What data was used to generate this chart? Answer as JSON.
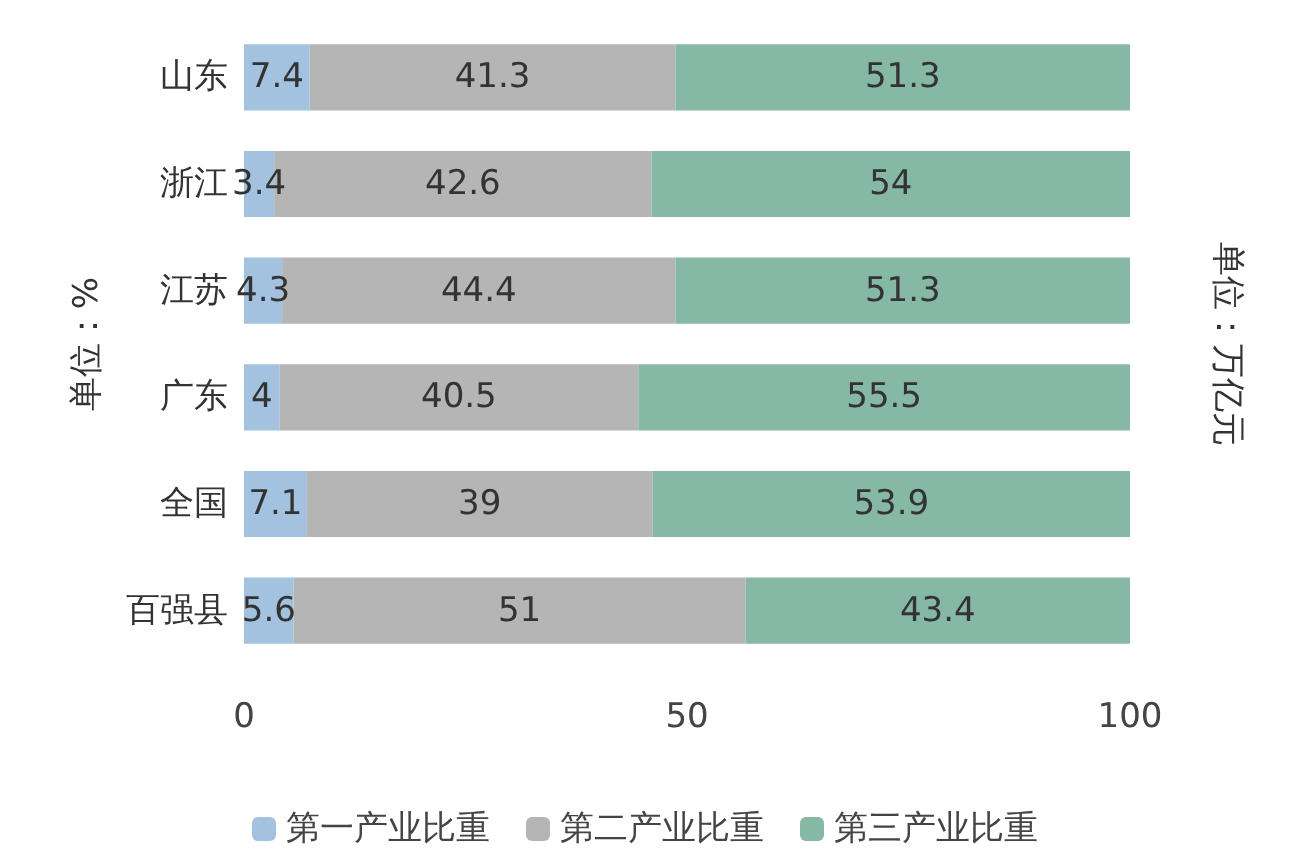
{
  "chart_data": {
    "type": "bar",
    "orientation": "horizontal",
    "stacked": true,
    "categories": [
      "山东",
      "浙江",
      "江苏",
      "广东",
      "全国",
      "百强县"
    ],
    "series": [
      {
        "name": "第一产业比重",
        "color": "#a3c2df",
        "values": [
          7.4,
          3.4,
          4.3,
          4,
          7.1,
          5.6
        ]
      },
      {
        "name": "第二产业比重",
        "color": "#b5b5b5",
        "values": [
          41.3,
          42.6,
          44.4,
          40.5,
          39,
          51
        ]
      },
      {
        "name": "第三产业比重",
        "color": "#86b8a6",
        "values": [
          51.3,
          54,
          51.3,
          55.5,
          53.9,
          43.4
        ]
      }
    ],
    "xlim": [
      0,
      100
    ],
    "xticks": [
      0,
      50,
      100
    ],
    "ylabel": "单位：%",
    "y2label": "单位：万亿元",
    "data_labels": true,
    "legend": "bottom",
    "grid": false
  }
}
